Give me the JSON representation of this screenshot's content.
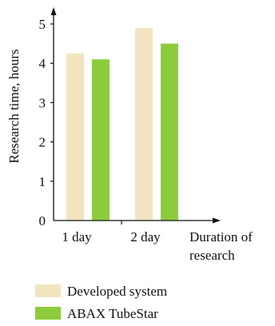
{
  "chart_data": {
    "type": "bar",
    "categories": [
      "1 day",
      "2 day"
    ],
    "series": [
      {
        "name": "Developed system",
        "values": [
          4.25,
          4.9
        ]
      },
      {
        "name": "ABAX TubeStar",
        "values": [
          4.1,
          4.5
        ]
      }
    ],
    "title": "",
    "xlabel": [
      "Duration of",
      "research"
    ],
    "ylabel": "Research time, hours",
    "ylim": [
      0,
      5
    ],
    "yticks": [
      "0",
      "1",
      "2",
      "3",
      "4",
      "5"
    ],
    "grid": false,
    "legend_position": "bottom",
    "colors": {
      "Developed system": "#f2e4c0",
      "ABAX TubeStar": "#8ccc3c",
      "axis": "#111111"
    }
  }
}
